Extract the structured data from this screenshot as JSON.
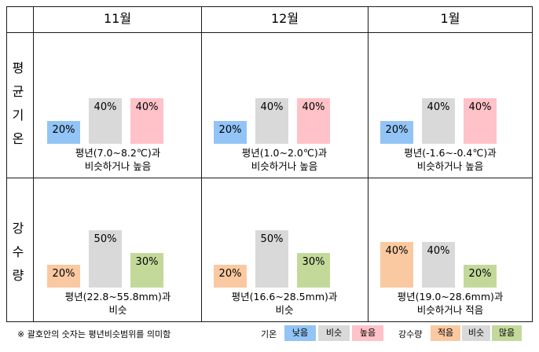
{
  "months": [
    "11월",
    "12월",
    "1월"
  ],
  "row_labels": {
    "temperature": [
      "평",
      "균",
      "기",
      "온"
    ],
    "precipitation": [
      "강",
      "수",
      "량"
    ]
  },
  "colors": {
    "low": "#92c4f5",
    "similar": "#d9d9d9",
    "high": "#ffc2c8",
    "little": "#fac9a1",
    "much": "#c3d99a"
  },
  "chart_data": [
    {
      "type": "bar",
      "panel": "평균기온",
      "month": "11월",
      "categories": [
        "낮음",
        "비슷",
        "높음"
      ],
      "values": [
        20,
        40,
        40
      ],
      "caption": [
        "평년(7.0~8.2℃)과",
        "비슷하거나 높음"
      ]
    },
    {
      "type": "bar",
      "panel": "평균기온",
      "month": "12월",
      "categories": [
        "낮음",
        "비슷",
        "높음"
      ],
      "values": [
        20,
        40,
        40
      ],
      "caption": [
        "평년(1.0~2.0℃)과",
        "비슷하거나 높음"
      ]
    },
    {
      "type": "bar",
      "panel": "평균기온",
      "month": "1월",
      "categories": [
        "낮음",
        "비슷",
        "높음"
      ],
      "values": [
        20,
        40,
        40
      ],
      "caption": [
        "평년(-1.6~-0.4℃)과",
        "비슷하거나 높음"
      ]
    },
    {
      "type": "bar",
      "panel": "강수량",
      "month": "11월",
      "categories": [
        "적음",
        "비슷",
        "많음"
      ],
      "values": [
        20,
        50,
        30
      ],
      "caption": [
        "평년(22.8~55.8mm)과",
        "비슷"
      ]
    },
    {
      "type": "bar",
      "panel": "강수량",
      "month": "12월",
      "categories": [
        "적음",
        "비슷",
        "많음"
      ],
      "values": [
        20,
        50,
        30
      ],
      "caption": [
        "평년(16.6~28.5mm)과",
        "비슷"
      ]
    },
    {
      "type": "bar",
      "panel": "강수량",
      "month": "1월",
      "categories": [
        "적음",
        "비슷",
        "많음"
      ],
      "values": [
        40,
        40,
        20
      ],
      "caption": [
        "평년(19.0~28.6mm)과",
        "비슷하거나 적음"
      ]
    }
  ],
  "footer": {
    "note": "※ 괄호안의 숫자는 평년비슷범위를 의미함",
    "temp_legend": {
      "title": "기온",
      "items": [
        "낮음",
        "비슷",
        "높음"
      ]
    },
    "precip_legend": {
      "title": "강수량",
      "items": [
        "적음",
        "비슷",
        "많음"
      ]
    }
  }
}
